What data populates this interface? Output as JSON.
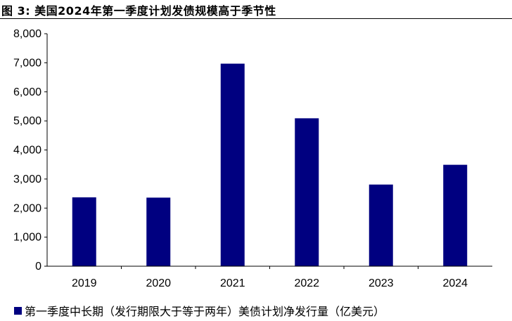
{
  "figure_title": "图 3:  美国2024年第一季度计划发债规模高于季节性",
  "legend": {
    "label": "第一季度中长期（发行期限大于等于两年）美债计划净发行量（亿美元）"
  },
  "colors": {
    "bar": "#000080",
    "axis": "#000000"
  },
  "chart_data": {
    "type": "bar",
    "title": "",
    "xlabel": "",
    "ylabel": "",
    "categories": [
      "2019",
      "2020",
      "2021",
      "2022",
      "2023",
      "2024"
    ],
    "series": [
      {
        "name": "第一季度中长期（发行期限大于等于两年）美债计划净发行量（亿美元）",
        "values": [
          2370,
          2360,
          6970,
          5090,
          2810,
          3490
        ]
      }
    ],
    "yticks": [
      "0",
      "1,000",
      "2,000",
      "3,000",
      "4,000",
      "5,000",
      "6,000",
      "7,000",
      "8,000"
    ],
    "ylim": [
      0,
      8000
    ],
    "grid": false,
    "legend_position": "bottom"
  }
}
